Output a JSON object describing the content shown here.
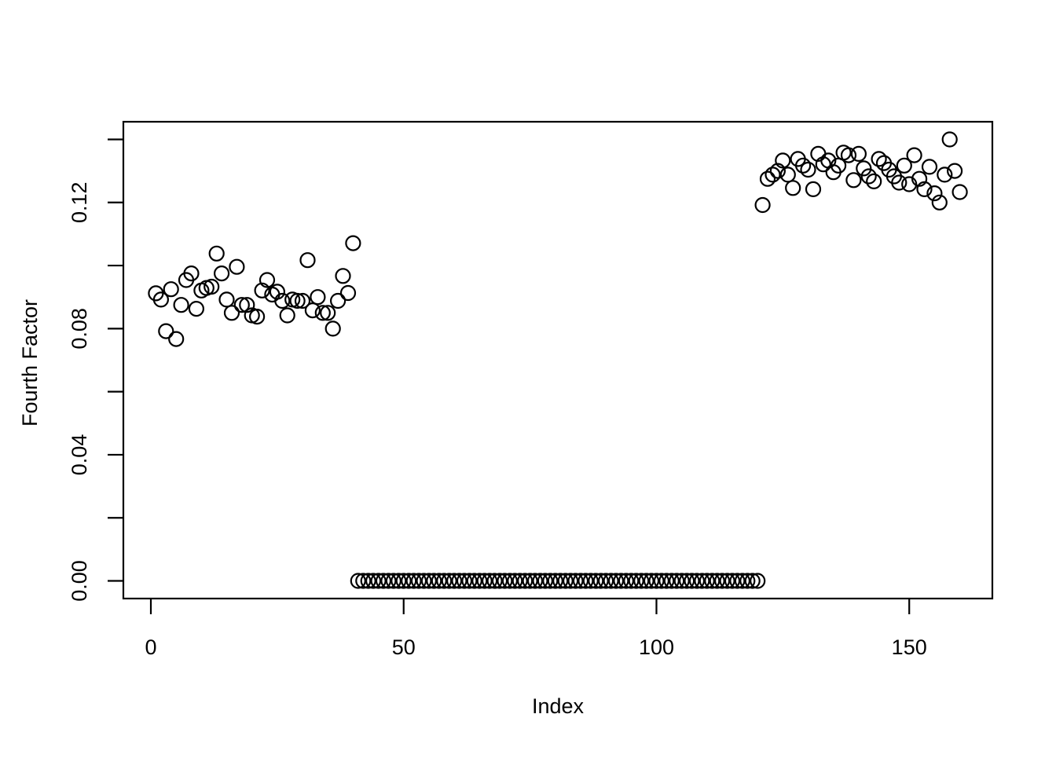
{
  "figure": {
    "background": "#ffffff",
    "foreground": "#000000"
  },
  "chart_data": {
    "type": "scatter",
    "title": "",
    "xlabel": "Index",
    "ylabel": "Fourth Factor",
    "marker": {
      "shape": "open-circle",
      "color": "#000000",
      "fill": "none"
    },
    "grid": false,
    "legend": "none",
    "xlim": [
      -5.44,
      166.44
    ],
    "ylim": [
      -0.0056,
      0.1456
    ],
    "x_ticks": [
      0,
      50,
      100,
      150
    ],
    "x_tick_labels": [
      "0",
      "50",
      "100",
      "150"
    ],
    "y_ticks": [
      0.0,
      0.02,
      0.04,
      0.06,
      0.08,
      0.1,
      0.12,
      0.14
    ],
    "y_tick_labels": [
      "0.00",
      "",
      "0.04",
      "",
      "0.08",
      "",
      "0.12",
      ""
    ],
    "x_index_start": 1,
    "values": [
      0.0912,
      0.0892,
      0.0792,
      0.0925,
      0.0767,
      0.0875,
      0.0954,
      0.0975,
      0.0863,
      0.0921,
      0.0929,
      0.0933,
      0.1038,
      0.0975,
      0.0892,
      0.085,
      0.0996,
      0.0875,
      0.0875,
      0.0842,
      0.0838,
      0.0921,
      0.0954,
      0.0908,
      0.0917,
      0.0888,
      0.0842,
      0.0892,
      0.0888,
      0.0888,
      0.1017,
      0.0858,
      0.09,
      0.085,
      0.085,
      0.08,
      0.0888,
      0.0967,
      0.0913,
      0.1071,
      0.0,
      0.0,
      0.0,
      0.0,
      0.0,
      0.0,
      0.0,
      0.0,
      0.0,
      0.0,
      0.0,
      0.0,
      0.0,
      0.0,
      0.0,
      0.0,
      0.0,
      0.0,
      0.0,
      0.0,
      0.0,
      0.0,
      0.0,
      0.0,
      0.0,
      0.0,
      0.0,
      0.0,
      0.0,
      0.0,
      0.0,
      0.0,
      0.0,
      0.0,
      0.0,
      0.0,
      0.0,
      0.0,
      0.0,
      0.0,
      0.0,
      0.0,
      0.0,
      0.0,
      0.0,
      0.0,
      0.0,
      0.0,
      0.0,
      0.0,
      0.0,
      0.0,
      0.0,
      0.0,
      0.0,
      0.0,
      0.0,
      0.0,
      0.0,
      0.0,
      0.0,
      0.0,
      0.0,
      0.0,
      0.0,
      0.0,
      0.0,
      0.0,
      0.0,
      0.0,
      0.0,
      0.0,
      0.0,
      0.0,
      0.0,
      0.0,
      0.0,
      0.0,
      0.0,
      0.0,
      0.1192,
      0.1275,
      0.1288,
      0.13,
      0.1333,
      0.1288,
      0.1246,
      0.1338,
      0.1317,
      0.1304,
      0.1242,
      0.1354,
      0.1321,
      0.1333,
      0.1296,
      0.1317,
      0.1358,
      0.135,
      0.1271,
      0.1354,
      0.1308,
      0.1283,
      0.1267,
      0.1338,
      0.1325,
      0.1304,
      0.1283,
      0.1263,
      0.1317,
      0.1258,
      0.135,
      0.1275,
      0.1242,
      0.1313,
      0.1229,
      0.12,
      0.1288,
      0.14,
      0.13,
      0.1233
    ]
  }
}
